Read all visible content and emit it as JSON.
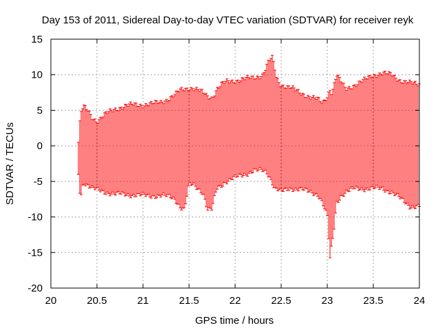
{
  "chart_data": {
    "type": "errorbar",
    "title": "Day 153 of 2011, Sidereal Day-to-day VTEC variation (SDTVAR) for receiver reyk",
    "xlabel": "GPS time / hours",
    "ylabel": "SDTVAR / TECUs",
    "xlim": [
      20,
      24
    ],
    "ylim": [
      -20,
      15
    ],
    "xticks": [
      {
        "value": 20,
        "label": "20"
      },
      {
        "value": 20.5,
        "label": "20.5"
      },
      {
        "value": 21,
        "label": "21"
      },
      {
        "value": 21.5,
        "label": "21.5"
      },
      {
        "value": 22,
        "label": "22"
      },
      {
        "value": 22.5,
        "label": "22.5"
      },
      {
        "value": 23,
        "label": "23"
      },
      {
        "value": 23.5,
        "label": "23.5"
      },
      {
        "value": 24,
        "label": "24"
      }
    ],
    "yticks": [
      {
        "value": 15,
        "label": "15"
      },
      {
        "value": 10,
        "label": "10"
      },
      {
        "value": 5,
        "label": "5"
      },
      {
        "value": 0,
        "label": "0"
      },
      {
        "value": -5,
        "label": "-5"
      },
      {
        "value": -10,
        "label": "-10"
      },
      {
        "value": -15,
        "label": "-15"
      },
      {
        "value": -20,
        "label": "-20"
      }
    ],
    "grid": true,
    "series_color": "#ff0000",
    "envelope": {
      "x": [
        20.3,
        20.32,
        20.35,
        20.4,
        20.45,
        20.5,
        20.6,
        20.7,
        20.8,
        20.9,
        21.0,
        21.1,
        21.2,
        21.3,
        21.35,
        21.4,
        21.45,
        21.5,
        21.55,
        21.6,
        21.65,
        21.7,
        21.75,
        21.8,
        21.85,
        21.9,
        22.0,
        22.1,
        22.2,
        22.3,
        22.35,
        22.4,
        22.43,
        22.45,
        22.5,
        22.6,
        22.7,
        22.8,
        22.9,
        22.95,
        23.0,
        23.03,
        23.05,
        23.08,
        23.1,
        23.15,
        23.2,
        23.3,
        23.4,
        23.5,
        23.6,
        23.7,
        23.8,
        23.9,
        24.0
      ],
      "high": [
        0.5,
        4.5,
        5.5,
        5.0,
        4.0,
        3.5,
        4.5,
        5.2,
        5.6,
        5.8,
        5.8,
        5.9,
        6.2,
        6.8,
        7.2,
        7.8,
        8.0,
        8.2,
        8.1,
        7.8,
        7.5,
        7.0,
        6.8,
        8.0,
        8.6,
        9.0,
        9.2,
        9.4,
        9.6,
        10.0,
        11.5,
        12.5,
        11.0,
        9.5,
        8.6,
        8.2,
        7.5,
        7.0,
        6.5,
        6.0,
        7.0,
        8.0,
        7.5,
        9.0,
        10.0,
        9.0,
        8.0,
        8.6,
        9.2,
        10.0,
        10.2,
        10.0,
        9.2,
        8.8,
        8.7
      ],
      "low": [
        -4.0,
        -7.5,
        -5.0,
        -5.5,
        -6.0,
        -6.2,
        -6.5,
        -6.8,
        -6.8,
        -6.9,
        -7.0,
        -7.0,
        -7.0,
        -7.2,
        -7.5,
        -8.5,
        -9.0,
        -5.5,
        -5.5,
        -6.0,
        -6.5,
        -9.0,
        -9.0,
        -6.0,
        -5.5,
        -5.0,
        -4.5,
        -4.0,
        -3.5,
        -3.5,
        -3.8,
        -5.0,
        -6.0,
        -6.0,
        -6.5,
        -6.0,
        -6.0,
        -6.5,
        -6.8,
        -8.0,
        -10.0,
        -16.0,
        -14.0,
        -11.0,
        -8.0,
        -7.0,
        -6.5,
        -6.0,
        -6.0,
        -6.0,
        -6.0,
        -6.5,
        -7.5,
        -8.5,
        -8.5
      ]
    }
  }
}
